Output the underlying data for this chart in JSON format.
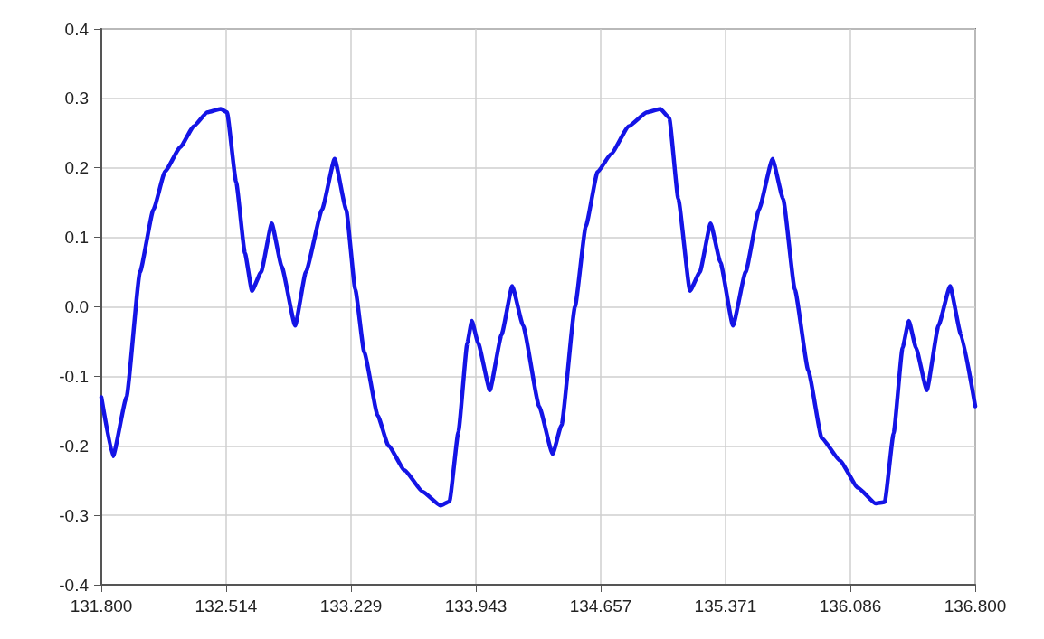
{
  "chart_data": {
    "type": "line",
    "x": [
      131.8,
      131.867,
      131.944,
      132.021,
      132.098,
      132.165,
      132.252,
      132.329,
      132.406,
      132.483,
      132.519,
      132.571,
      132.622,
      132.662,
      132.714,
      132.775,
      132.832,
      132.909,
      132.97,
      133.063,
      133.135,
      133.201,
      133.253,
      133.304,
      133.381,
      133.443,
      133.535,
      133.638,
      133.74,
      133.792,
      133.843,
      133.894,
      133.92,
      133.956,
      134.023,
      134.09,
      134.151,
      134.213,
      134.305,
      134.382,
      134.433,
      134.51,
      134.572,
      134.639,
      134.716,
      134.818,
      134.921,
      134.998,
      135.049,
      135.101,
      135.168,
      135.224,
      135.286,
      135.342,
      135.414,
      135.486,
      135.563,
      135.64,
      135.701,
      135.768,
      135.845,
      135.922,
      136.025,
      136.128,
      136.23,
      136.282,
      136.333,
      136.384,
      136.42,
      136.461,
      136.523,
      136.59,
      136.656,
      136.718,
      136.8
    ],
    "series": [
      {
        "color": "#1414e6",
        "values": [
          -0.13,
          -0.215,
          -0.13,
          0.05,
          0.14,
          0.195,
          0.23,
          0.26,
          0.28,
          0.285,
          0.28,
          0.18,
          0.077,
          0.023,
          0.05,
          0.12,
          0.058,
          -0.027,
          0.05,
          0.14,
          0.213,
          0.14,
          0.025,
          -0.065,
          -0.156,
          -0.2,
          -0.235,
          -0.266,
          -0.286,
          -0.28,
          -0.18,
          -0.052,
          -0.02,
          -0.052,
          -0.12,
          -0.04,
          0.03,
          -0.027,
          -0.143,
          -0.212,
          -0.17,
          0,
          0.116,
          0.194,
          0.22,
          0.26,
          0.28,
          0.285,
          0.272,
          0.155,
          0.023,
          0.05,
          0.12,
          0.064,
          -0.027,
          0.05,
          0.14,
          0.213,
          0.155,
          0.025,
          -0.092,
          -0.189,
          -0.221,
          -0.26,
          -0.283,
          -0.281,
          -0.182,
          -0.059,
          -0.02,
          -0.059,
          -0.12,
          -0.027,
          0.03,
          -0.04,
          -0.143
        ]
      }
    ],
    "xlim": [
      131.8,
      136.8
    ],
    "xticks": [
      {
        "value": 131.8,
        "label": "131.800"
      },
      132.514,
      133.229,
      133.943,
      134.657,
      135.371,
      136.086,
      {
        "value": 136.8,
        "label": "136.800"
      }
    ],
    "ylim": [
      -0.4,
      0.4
    ],
    "yticks": [
      -0.4,
      -0.3,
      -0.2,
      -0.1,
      {
        "value": 0,
        "label": "0.0"
      },
      0.1,
      0.2,
      0.3,
      0.4
    ],
    "grid": true,
    "marker": "none",
    "line_style": "solid"
  }
}
